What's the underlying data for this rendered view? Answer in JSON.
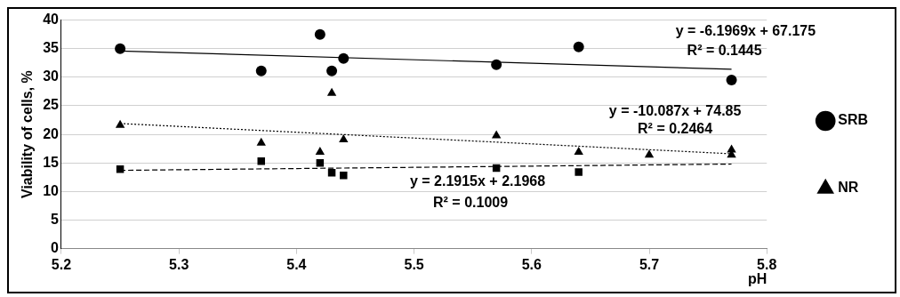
{
  "chart_data": {
    "type": "scatter",
    "xlabel": "pH",
    "ylabel": "Viability of cells, %",
    "xlim": [
      5.2,
      5.8
    ],
    "xticks": [
      5.2,
      5.3,
      5.4,
      5.5,
      5.6,
      5.7,
      5.8
    ],
    "ylim": [
      0,
      40
    ],
    "yticks": [
      0,
      5,
      10,
      15,
      20,
      25,
      30,
      35,
      40
    ],
    "grid": "y",
    "legend": "right",
    "series": [
      {
        "name": "SRB",
        "color": "#000000",
        "marker": "circle",
        "x": [
          5.25,
          5.37,
          5.42,
          5.43,
          5.44,
          5.57,
          5.64,
          5.77
        ],
        "values": [
          35,
          31.1,
          37.5,
          31.1,
          33.3,
          32.2,
          35.3,
          29.5
        ]
      },
      {
        "name": "NR",
        "color": "#000000",
        "marker": "triangle",
        "x": [
          5.25,
          5.37,
          5.42,
          5.43,
          5.44,
          5.57,
          5.64,
          5.7,
          5.77,
          5.77
        ],
        "values": [
          21.6,
          18.5,
          16.9,
          27.2,
          19.1,
          19.8,
          16.9,
          16.4,
          17.3,
          16.4
        ]
      },
      {
        "color": "#000000",
        "marker": "square",
        "x": [
          5.25,
          5.37,
          5.42,
          5.43,
          5.44,
          5.57,
          5.64
        ],
        "values": [
          13.9,
          15.3,
          15.0,
          13.3,
          12.8,
          14.1,
          13.4
        ]
      },
      {
        "type": "line",
        "color": "#000000",
        "marker": "none",
        "line_style": "solid",
        "x": [
          5.25,
          5.77
        ],
        "values": [
          34.6,
          31.4
        ]
      },
      {
        "type": "line",
        "color": "#000000",
        "marker": "none",
        "line_style": "dotted",
        "x": [
          5.25,
          5.77
        ],
        "values": [
          21.9,
          16.6
        ]
      },
      {
        "type": "line",
        "color": "#000000",
        "marker": "none",
        "line_style": "dashed",
        "x": [
          5.25,
          5.77
        ],
        "values": [
          13.7,
          14.8
        ]
      }
    ],
    "annotations": [
      "y = -6.1969x + 67.175",
      "R² = 0.1445",
      "y = -10.087x + 74.85",
      "R² = 0.2464",
      "y = 2.1915x + 2.1968",
      "R² = 0.1009"
    ]
  }
}
